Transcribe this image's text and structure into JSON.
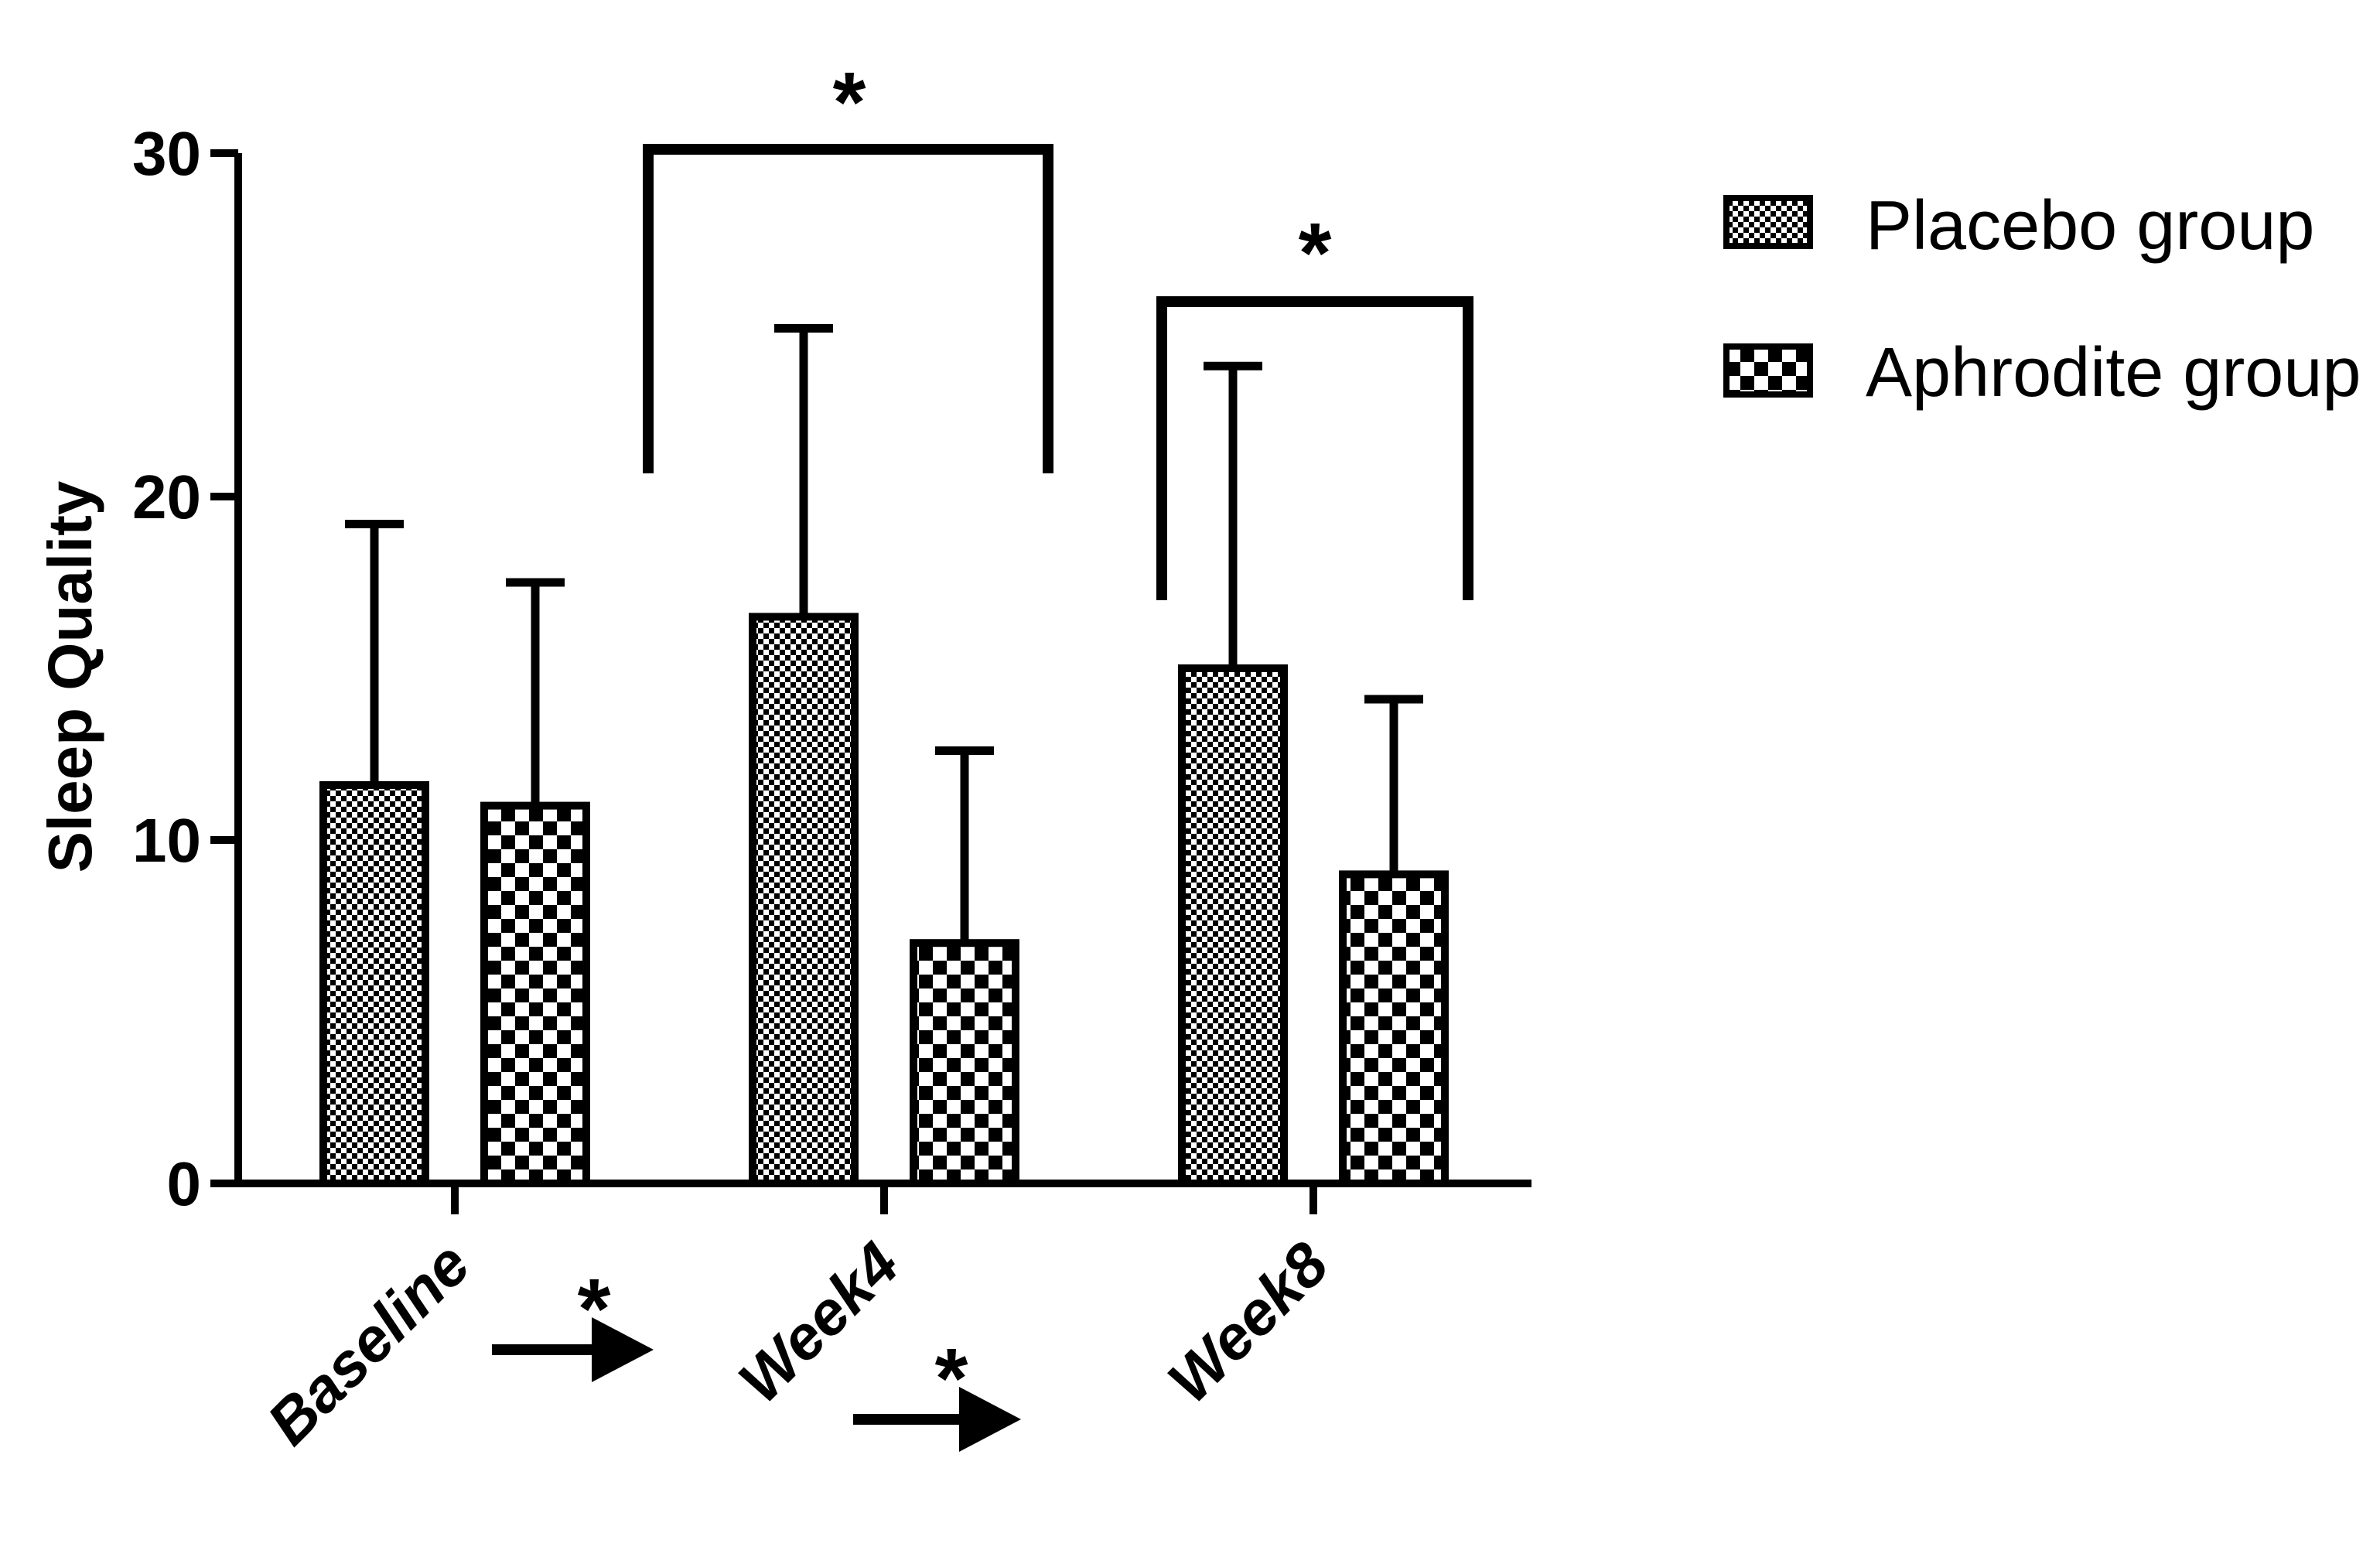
{
  "chart_data": {
    "type": "bar",
    "title": "",
    "xlabel": "",
    "ylabel": "Sleep Quality",
    "ylim": [
      0,
      30
    ],
    "yticks": [
      "0",
      "10",
      "20",
      "30"
    ],
    "categories": [
      "Baseline",
      "Week4",
      "Week8"
    ],
    "series": [
      {
        "name": "Placebo group",
        "pattern": "fine-checker",
        "values": [
          11.6,
          16.5,
          15.0
        ],
        "error": [
          7.6,
          8.4,
          8.8
        ]
      },
      {
        "name": "Aphrodite group",
        "pattern": "coarse-checker",
        "values": [
          11.0,
          7.0,
          9.0
        ],
        "error": [
          6.5,
          5.6,
          5.1
        ]
      }
    ],
    "legend_position": "top-right",
    "grid": false,
    "annotations": {
      "significance_marker": "*",
      "brackets": [
        {
          "category": "Week4",
          "marker": "*"
        },
        {
          "category": "Week8",
          "marker": "*"
        }
      ],
      "arrows": [
        {
          "from": "Baseline",
          "to": "Week4",
          "marker": "*"
        },
        {
          "from": "Week4",
          "to": "Week8",
          "marker": "*"
        }
      ]
    },
    "colors": {
      "ink": "#000000",
      "background": "#ffffff"
    }
  }
}
